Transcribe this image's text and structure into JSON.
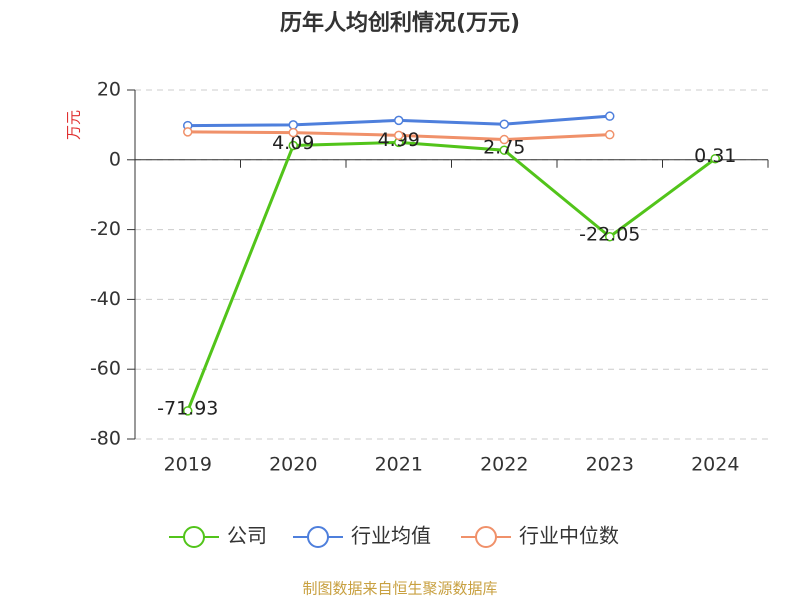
{
  "chart_data": {
    "type": "line",
    "title": "历年人均创利情况(万元)",
    "y_label": "万元",
    "categories": [
      "2019",
      "2020",
      "2021",
      "2022",
      "2023",
      "2024"
    ],
    "series": [
      {
        "name": "公司",
        "color": "#52c41a",
        "values": [
          -71.93,
          4.09,
          4.99,
          2.75,
          -22.05,
          0.31
        ],
        "data_labels": true
      },
      {
        "name": "行业均值",
        "color": "#4e7fdc",
        "values": [
          9.8,
          10.0,
          11.3,
          10.2,
          12.5,
          null
        ],
        "data_labels": false
      },
      {
        "name": "行业中位数",
        "color": "#f0916a",
        "values": [
          8.0,
          7.8,
          7.0,
          5.8,
          7.2,
          null
        ],
        "data_labels": false
      }
    ],
    "ylim": [
      -80,
      20
    ],
    "yticks": [
      -80,
      -60,
      -40,
      -20,
      0,
      20
    ],
    "grid": true,
    "legend": "bottom",
    "source": "制图数据来自恒生聚源数据库"
  }
}
